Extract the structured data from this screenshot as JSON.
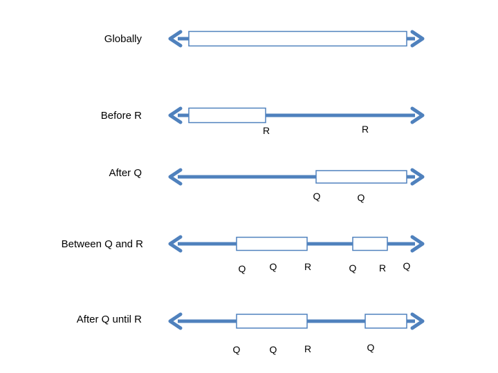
{
  "colors": {
    "line": "#4F81BD",
    "box_border": "#4F81BD",
    "box_fill": "#ffffff",
    "text": "#000000"
  },
  "rows": [
    {
      "label": "Globally",
      "events": []
    },
    {
      "label": "Before R",
      "events": [
        "R",
        "R"
      ]
    },
    {
      "label": "After Q",
      "events": [
        "Q",
        "Q"
      ]
    },
    {
      "label": "Between Q and R",
      "events": [
        "Q",
        "Q",
        "R",
        "Q",
        "R",
        "Q"
      ]
    },
    {
      "label": "After Q until R",
      "events": [
        "Q",
        "Q",
        "R",
        "Q"
      ]
    }
  ]
}
